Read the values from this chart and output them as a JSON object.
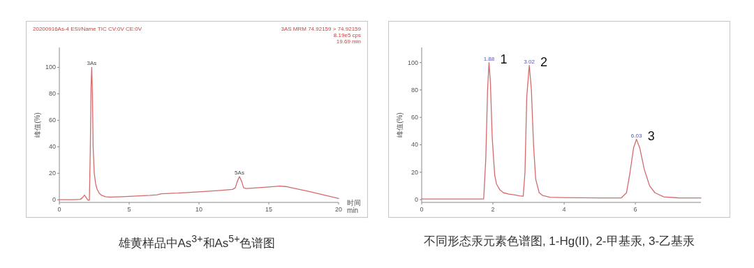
{
  "chart_data": [
    {
      "type": "line",
      "title": "雄黄样品中As$^{3+}$和As$^{5+}$色谱图",
      "ylabel": "峰值(%)",
      "xlabel": "时间 min",
      "xlim": [
        0,
        20
      ],
      "xticks": [
        0,
        5,
        10,
        15,
        20
      ],
      "ylim": [
        -2,
        115
      ],
      "yticks": [
        0,
        20,
        40,
        60,
        80,
        100
      ],
      "annotations": [
        "20200916As-4 ESI/Name TIC CV:0V CE:0V",
        "3AS MRM 74.92159 > 74.92159",
        "8.19e5 cps",
        "19.69 min",
        {
          "text": "3As",
          "x": 2.32,
          "y": 100
        },
        {
          "text": "5As",
          "x": 12.9,
          "y": 17.5
        }
      ],
      "series": [
        {
          "color": "#d46a6a",
          "x": [
            0,
            1.0,
            1.5,
            1.65,
            1.8,
            1.95,
            2.05,
            2.15,
            2.22,
            2.27,
            2.32,
            2.37,
            2.42,
            2.5,
            2.6,
            2.7,
            2.85,
            3.0,
            3.3,
            3.6,
            4.5,
            5.5,
            6.5,
            7.0,
            7.3,
            8.5,
            10.0,
            11.5,
            12.4,
            12.6,
            12.75,
            12.9,
            13.05,
            13.2,
            13.4,
            14.5,
            15.8,
            16.2,
            18.0,
            20.0
          ],
          "values": [
            0,
            0,
            0.3,
            1.5,
            3.5,
            1.2,
            -0.3,
            -0.3,
            40,
            85,
            100,
            80,
            40,
            20,
            12,
            8,
            5,
            3.5,
            2.3,
            2,
            2.3,
            2.8,
            3.3,
            3.7,
            4.5,
            5,
            6,
            7,
            7.8,
            9,
            14,
            17.5,
            14,
            9,
            8.5,
            9.3,
            10.3,
            10,
            6,
            1
          ]
        }
      ]
    },
    {
      "type": "line",
      "title": "不同形态汞元素色谱图, 1-Hg(II), 2-甲基汞, 3-乙基汞",
      "ylabel": "峰值(%)",
      "xlim": [
        0,
        7.84
      ],
      "xticks": [
        0,
        2,
        4,
        6
      ],
      "ylim": [
        -2,
        111
      ],
      "yticks": [
        0,
        20,
        40,
        60,
        80,
        100
      ],
      "annotations": [
        {
          "text": "1.88",
          "x": 1.89,
          "y": 100
        },
        "1",
        {
          "text": "3.02",
          "x": 3.02,
          "y": 98
        },
        "2",
        {
          "text": "6.03",
          "x": 6.03,
          "y": 44
        },
        "3"
      ],
      "series": [
        {
          "color": "#d46a6a",
          "x": [
            0,
            1.0,
            1.74,
            1.8,
            1.85,
            1.89,
            1.93,
            1.98,
            2.05,
            2.1,
            2.2,
            2.3,
            2.45,
            2.6,
            2.75,
            2.85,
            2.9,
            2.95,
            3.02,
            3.08,
            3.14,
            3.2,
            3.3,
            3.4,
            3.6,
            4.0,
            5.0,
            5.6,
            5.75,
            5.85,
            5.95,
            6.03,
            6.12,
            6.25,
            6.4,
            6.55,
            6.8,
            7.2,
            7.84
          ],
          "values": [
            0.5,
            0.5,
            0.5,
            30,
            80,
            100,
            85,
            45,
            18,
            11.5,
            7,
            5,
            4,
            3.5,
            2.8,
            2.5,
            20,
            75,
            98,
            80,
            40,
            15,
            5,
            3,
            1.8,
            1.5,
            1.2,
            1.2,
            5,
            20,
            38,
            44,
            38,
            22,
            10,
            5,
            2,
            1.3,
            1.2
          ]
        }
      ]
    }
  ]
}
